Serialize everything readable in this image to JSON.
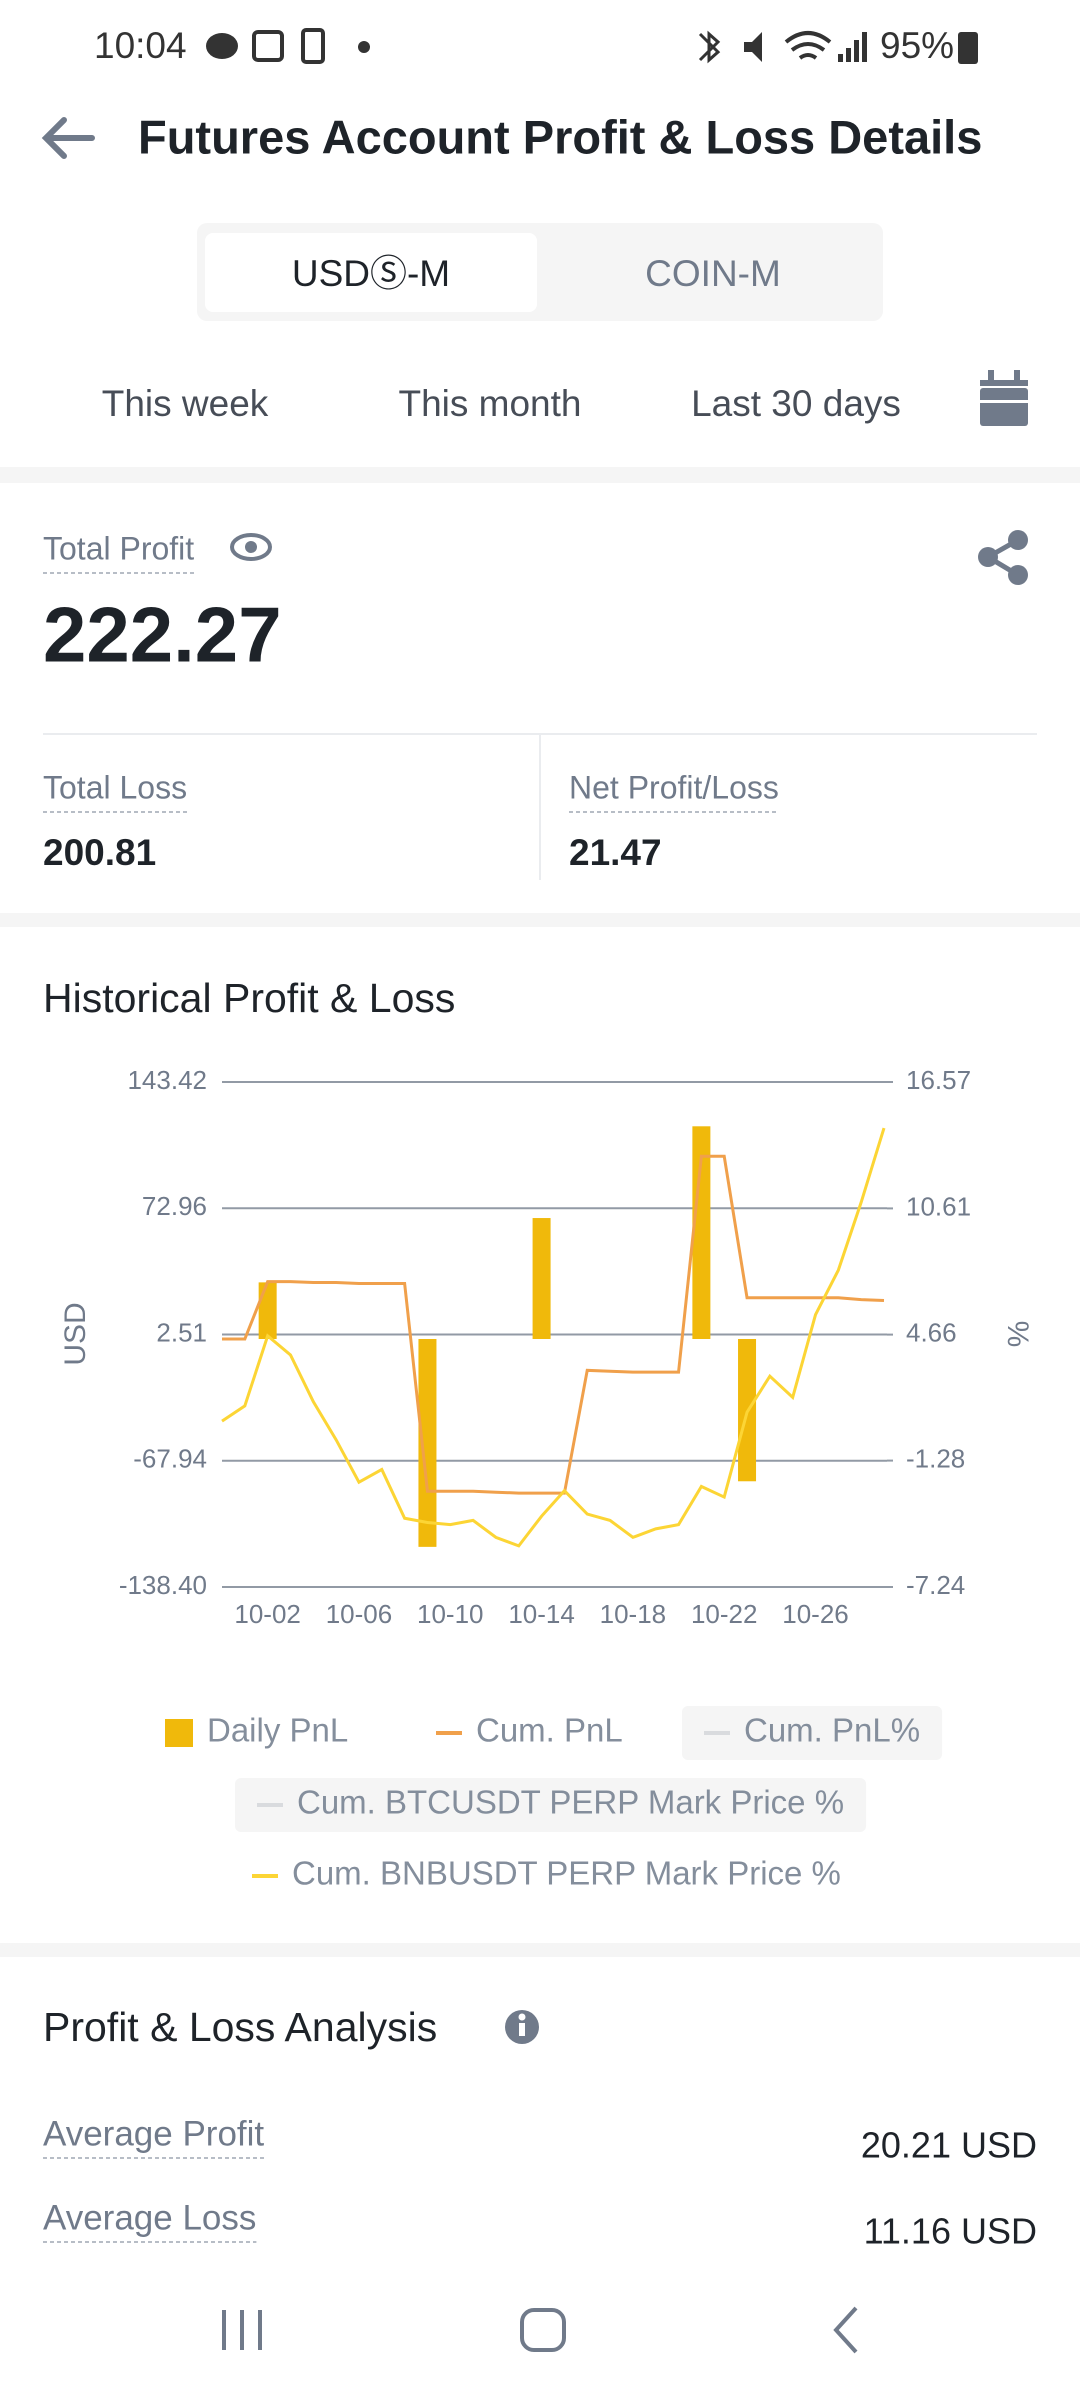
{
  "status_bar": {
    "time": "10:04",
    "battery": "95%"
  },
  "header": {
    "title": "Futures Account Profit & Loss Details"
  },
  "tabs": [
    "USDⓈ-M",
    "COIN-M"
  ],
  "periods": [
    "This week",
    "This month",
    "Last 30 days"
  ],
  "summary": {
    "total_profit_label": "Total Profit",
    "total_profit": 222.27,
    "total_loss_label": "Total Loss",
    "total_loss": 200.81,
    "net_label": "Net Profit/Loss",
    "net": 21.47
  },
  "chart_data": {
    "type": "combo",
    "title": "Historical Profit & Loss",
    "y_label": "USD",
    "y2_label": "%",
    "categories": [
      null,
      null,
      "10-02",
      null,
      null,
      null,
      "10-06",
      null,
      null,
      null,
      "10-10",
      null,
      null,
      null,
      "10-14",
      null,
      null,
      null,
      "10-18",
      null,
      null,
      null,
      "10-22",
      null,
      null,
      null,
      "10-26",
      null,
      null,
      null
    ],
    "ylim": [
      -138.4,
      143.42
    ],
    "yticks": [
      {
        "value": -138.4,
        "label": "-138.40"
      },
      -67.94,
      2.51,
      72.96,
      143.42
    ],
    "y2lim": [
      -7.24,
      16.57
    ],
    "y2ticks": [
      -7.24,
      -1.28,
      4.66,
      10.61,
      16.57
    ],
    "grid": true,
    "series": [
      {
        "name": "Daily PnL",
        "type": "bar",
        "color": "#f0b90b",
        "values": [
          null,
          null,
          31.6,
          null,
          null,
          null,
          null,
          null,
          null,
          -116,
          null,
          null,
          null,
          null,
          67.5,
          null,
          null,
          null,
          null,
          null,
          null,
          118.7,
          null,
          -79.4,
          null,
          null,
          null,
          null,
          null,
          null
        ]
      },
      {
        "name": "Cum. PnL",
        "type": "line",
        "color": "#f0a04b",
        "values": [
          0,
          0,
          32,
          32,
          31.5,
          31.5,
          31,
          31,
          31,
          -85,
          -85,
          -85,
          -85.5,
          -86,
          -86,
          -86,
          -17.5,
          -18,
          -18.5,
          -18.5,
          -18.5,
          102,
          102,
          23,
          23,
          23,
          23,
          23,
          22,
          21.5
        ]
      },
      {
        "name": "Cum. PnL%",
        "type": "line",
        "color": "#d9dbde",
        "visible": false
      },
      {
        "name": "Cum. BTCUSDT PERP Mark Price %",
        "type": "line",
        "color": "#d9dbde",
        "visible": false
      },
      {
        "name": "Cum. BNBUSDT PERP Mark Price %",
        "type": "line",
        "color": "#fcd535",
        "axis": "y2",
        "values": [
          0.58,
          1.3,
          4.6,
          3.7,
          1.5,
          -0.3,
          -2.3,
          -1.7,
          -4.0,
          -4.2,
          -4.3,
          -4.1,
          -4.9,
          -5.3,
          -3.9,
          -2.7,
          -3.8,
          -4.1,
          -4.9,
          -4.5,
          -4.3,
          -2.5,
          -3.0,
          1.0,
          2.7,
          1.7,
          5.6,
          7.7,
          10.9,
          14.4
        ]
      }
    ]
  },
  "analysis": {
    "title": "Profit & Loss Analysis",
    "rows": [
      {
        "label": "Average Profit",
        "value": "20.21 USD"
      },
      {
        "label": "Average Loss",
        "value": "11.16 USD"
      }
    ]
  }
}
